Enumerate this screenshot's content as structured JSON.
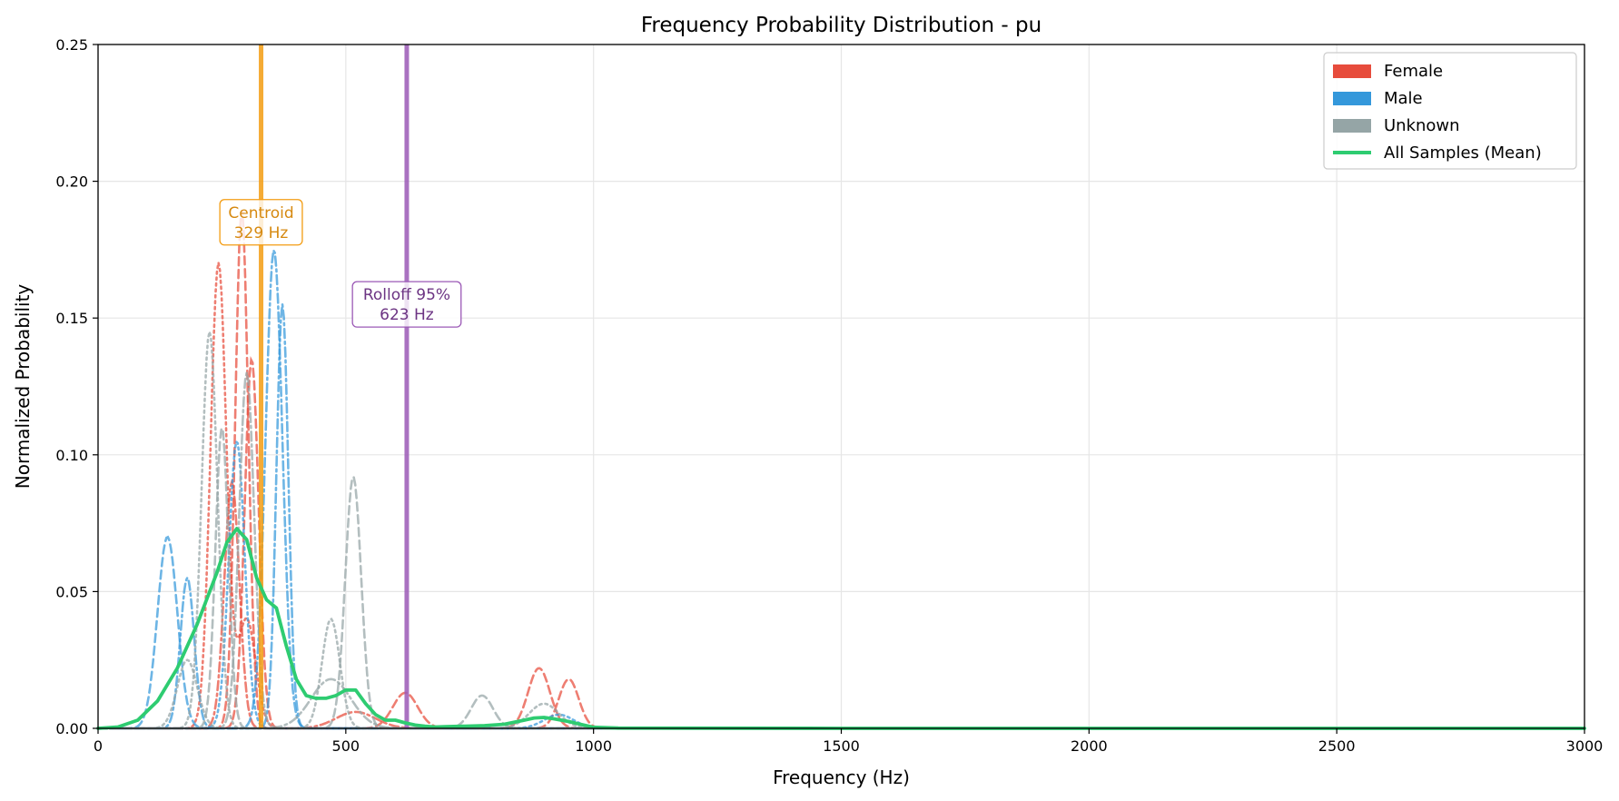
{
  "chart_data": {
    "type": "line",
    "title": "Frequency Probability Distribution - pu",
    "xlabel": "Frequency (Hz)",
    "ylabel": "Normalized Probability",
    "xlim": [
      0,
      3000
    ],
    "ylim": [
      0,
      0.25
    ],
    "xticks": [
      0,
      500,
      1000,
      1500,
      2000,
      2500,
      3000
    ],
    "yticks": [
      0.0,
      0.05,
      0.1,
      0.15,
      0.2,
      0.25
    ],
    "xtick_labels": [
      "0",
      "500",
      "1000",
      "1500",
      "2000",
      "2500",
      "3000"
    ],
    "ytick_labels": [
      "0.00",
      "0.05",
      "0.10",
      "0.15",
      "0.20",
      "0.25"
    ],
    "grid": true,
    "legend": {
      "placement": "top-right",
      "entries": [
        {
          "label": "Female",
          "color": "#e74c3c",
          "kind": "patch"
        },
        {
          "label": "Male",
          "color": "#3498db",
          "kind": "patch"
        },
        {
          "label": "Unknown",
          "color": "#95a5a6",
          "kind": "patch"
        },
        {
          "label": "All Samples (Mean)",
          "color": "#2ecc71",
          "kind": "line"
        }
      ]
    },
    "markers": [
      {
        "x": 329,
        "color": "#f39c12",
        "label_lines": [
          "Centroid",
          "329 Hz"
        ],
        "label_y": 0.185,
        "text_color": "#d68910"
      },
      {
        "x": 623,
        "color": "#9b59b6",
        "label_lines": [
          "Rolloff 95%",
          "623 Hz"
        ],
        "label_y": 0.155,
        "text_color": "#6c3483"
      }
    ],
    "mean_series": {
      "name": "All Samples (Mean)",
      "color": "#2ecc71",
      "x": [
        0,
        40,
        80,
        120,
        160,
        200,
        240,
        260,
        280,
        300,
        320,
        340,
        360,
        380,
        400,
        420,
        440,
        460,
        480,
        500,
        520,
        540,
        560,
        580,
        600,
        620,
        640,
        660,
        680,
        700,
        740,
        780,
        820,
        860,
        880,
        900,
        920,
        950,
        980,
        1000,
        1050,
        1500,
        2000,
        2500,
        3000
      ],
      "y": [
        0,
        0.0005,
        0.003,
        0.01,
        0.022,
        0.038,
        0.057,
        0.068,
        0.073,
        0.069,
        0.055,
        0.047,
        0.044,
        0.03,
        0.018,
        0.012,
        0.011,
        0.011,
        0.012,
        0.014,
        0.014,
        0.009,
        0.005,
        0.003,
        0.003,
        0.002,
        0.0012,
        0.0008,
        0.0005,
        0.0006,
        0.0008,
        0.001,
        0.0015,
        0.003,
        0.0038,
        0.004,
        0.0035,
        0.0025,
        0.0012,
        0.0004,
        0.0001,
        0,
        0,
        0,
        0
      ]
    },
    "sample_series": [
      {
        "group": "Female",
        "color": "#e74c3c",
        "dash": "dotted",
        "peaks": [
          [
            243,
            0.17,
            16
          ],
          [
            300,
            0.04,
            18
          ]
        ]
      },
      {
        "group": "Female",
        "color": "#e74c3c",
        "dash": "dashed",
        "peaks": [
          [
            290,
            0.19,
            13
          ],
          [
            620,
            0.013,
            25
          ],
          [
            890,
            0.022,
            22
          ]
        ]
      },
      {
        "group": "Female",
        "color": "#e74c3c",
        "dash": "dashed",
        "peaks": [
          [
            310,
            0.135,
            14
          ],
          [
            950,
            0.018,
            20
          ]
        ]
      },
      {
        "group": "Female",
        "color": "#e74c3c",
        "dash": "dashdot",
        "peaks": [
          [
            270,
            0.09,
            15
          ],
          [
            520,
            0.006,
            40
          ]
        ]
      },
      {
        "group": "Male",
        "color": "#3498db",
        "dash": "dashed",
        "peaks": [
          [
            140,
            0.07,
            20
          ]
        ]
      },
      {
        "group": "Male",
        "color": "#3498db",
        "dash": "dashdot",
        "peaks": [
          [
            355,
            0.175,
            17
          ]
        ]
      },
      {
        "group": "Male",
        "color": "#3498db",
        "dash": "dashdot",
        "peaks": [
          [
            372,
            0.155,
            12
          ],
          [
            180,
            0.055,
            14
          ]
        ]
      },
      {
        "group": "Male",
        "color": "#3498db",
        "dash": "dotted",
        "peaks": [
          [
            280,
            0.105,
            16
          ],
          [
            930,
            0.005,
            30
          ]
        ]
      },
      {
        "group": "Unknown",
        "color": "#95a5a6",
        "dash": "dotted",
        "peaks": [
          [
            225,
            0.145,
            16
          ],
          [
            470,
            0.04,
            18
          ]
        ]
      },
      {
        "group": "Unknown",
        "color": "#95a5a6",
        "dash": "dashed",
        "peaks": [
          [
            515,
            0.092,
            16
          ],
          [
            250,
            0.11,
            13
          ],
          [
            775,
            0.012,
            22
          ]
        ]
      },
      {
        "group": "Unknown",
        "color": "#95a5a6",
        "dash": "dashdot",
        "peaks": [
          [
            300,
            0.13,
            15
          ],
          [
            470,
            0.018,
            40
          ]
        ]
      },
      {
        "group": "Unknown",
        "color": "#95a5a6",
        "dash": "dotted",
        "peaks": [
          [
            180,
            0.025,
            20
          ],
          [
            900,
            0.009,
            30
          ]
        ]
      }
    ]
  }
}
